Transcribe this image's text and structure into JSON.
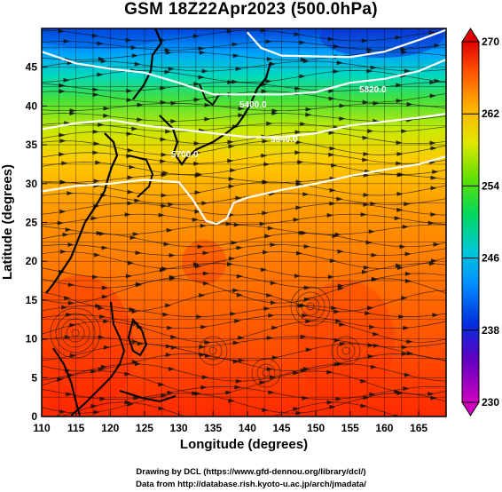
{
  "title": "GSM 18Z22Apr2023 (500.0hPa)",
  "x_axis": {
    "label": "Longitude (degrees)",
    "ticks": [
      "110",
      "115",
      "120",
      "125",
      "130",
      "135",
      "140",
      "145",
      "150",
      "155",
      "160",
      "165"
    ]
  },
  "y_axis": {
    "label": "Latitude (degrees)",
    "ticks": [
      "0",
      "5",
      "10",
      "15",
      "20",
      "25",
      "30",
      "35",
      "40",
      "45"
    ]
  },
  "colorbar": {
    "ticks": [
      "270",
      "262",
      "254",
      "246",
      "238",
      "230"
    ],
    "range": [
      230,
      270
    ],
    "colors": [
      "#d000c0",
      "#3000c0",
      "#0060ff",
      "#00b0e0",
      "#00d070",
      "#40e000",
      "#d0ee00",
      "#ffb000",
      "#ff6000",
      "#ff2000",
      "#e00000"
    ]
  },
  "contour_labels": [
    "5700.0",
    "5400.0",
    "5640.0",
    "5820.0"
  ],
  "credits": {
    "line1": "Drawing by DCL (https://www.gfd-dennou.org/library/dcl/)",
    "line2": "Data from http://database.rish.kyoto-u.ac.jp/arch/jmadata/"
  },
  "chart_data": {
    "type": "heatmap",
    "title": "GSM 18Z22Apr2023 (500.0hPa)",
    "xlabel": "Longitude (degrees)",
    "ylabel": "Latitude (degrees)",
    "xlim": [
      110,
      169
    ],
    "ylim": [
      0,
      50
    ],
    "colorbar_range": [
      230,
      270
    ],
    "colorbar_ticks": [
      230,
      238,
      246,
      254,
      262,
      270
    ],
    "contours": [
      {
        "value": 5400.0,
        "points": [
          [
            110,
            47
          ],
          [
            115,
            45.5
          ],
          [
            120,
            44.8
          ],
          [
            125,
            44.3
          ],
          [
            130,
            43
          ],
          [
            135,
            41.5
          ],
          [
            140,
            41.5
          ],
          [
            145,
            41.5
          ],
          [
            150,
            41.8
          ],
          [
            155,
            43
          ],
          [
            160,
            43.5
          ],
          [
            165,
            44.5
          ],
          [
            169,
            46
          ]
        ]
      },
      {
        "value": 5640.0,
        "points": [
          [
            110,
            37
          ],
          [
            115,
            37.8
          ],
          [
            120,
            38.2
          ],
          [
            125,
            37.5
          ],
          [
            130,
            37
          ],
          [
            135,
            36.5
          ],
          [
            140,
            36
          ],
          [
            145,
            36
          ],
          [
            150,
            36.5
          ],
          [
            155,
            37.5
          ],
          [
            160,
            38
          ],
          [
            165,
            38.5
          ],
          [
            169,
            39
          ]
        ]
      },
      {
        "value": 5700.0,
        "points": [
          [
            110,
            29
          ],
          [
            115,
            29.7
          ],
          [
            120,
            30
          ],
          [
            125,
            30.5
          ],
          [
            130,
            30.2
          ],
          [
            132,
            28
          ],
          [
            134,
            25.2
          ],
          [
            135.5,
            24.8
          ],
          [
            137,
            25.5
          ],
          [
            138,
            27.5
          ],
          [
            140,
            28.2
          ],
          [
            145,
            29.2
          ],
          [
            150,
            30
          ],
          [
            155,
            31
          ],
          [
            160,
            31.8
          ],
          [
            165,
            32.5
          ],
          [
            169,
            33.5
          ]
        ]
      },
      {
        "value": 5820.0,
        "points": [
          [
            140,
            49.5
          ],
          [
            142,
            47.5
          ],
          [
            145,
            46.5
          ],
          [
            150,
            46.4
          ],
          [
            155,
            46.3
          ],
          [
            160,
            47
          ],
          [
            165,
            48.5
          ],
          [
            169,
            49.8
          ]
        ]
      }
    ]
  }
}
